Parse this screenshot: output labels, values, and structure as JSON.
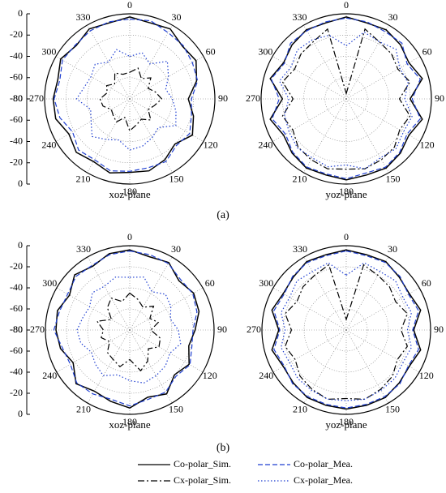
{
  "chart_data": [
    {
      "type": "polar",
      "title": "xoz-plane",
      "theta": [
        0,
        15,
        30,
        45,
        60,
        75,
        90,
        105,
        120,
        135,
        150,
        165,
        180,
        195,
        210,
        225,
        240,
        255,
        270,
        285,
        300,
        315,
        330,
        345
      ],
      "thetaticks": [
        0,
        30,
        60,
        90,
        120,
        150,
        180,
        210,
        240,
        270,
        300,
        330
      ],
      "rlim": [
        -80,
        0
      ],
      "rticks": [
        -80,
        -60,
        -40,
        -20,
        0
      ],
      "radial_axis": true,
      "grid": true,
      "series": [
        {
          "name": "Co-polar_Sim.",
          "color": "#000000",
          "dash": "solid",
          "values": [
            -3,
            -6,
            -4,
            -10,
            -8,
            -15,
            -25,
            -18,
            -12,
            -20,
            -14,
            -10,
            -11,
            -8,
            -12,
            -9,
            -14,
            -8,
            -8,
            -10,
            -5,
            -9,
            -4,
            -6
          ]
        },
        {
          "name": "Co-polar_Mea.",
          "color": "#1f3fd1",
          "dash": "dashed",
          "values": [
            -5,
            -4,
            -8,
            -9,
            -12,
            -14,
            -22,
            -20,
            -15,
            -18,
            -12,
            -13,
            -12,
            -10,
            -14,
            -12,
            -18,
            -12,
            -9,
            -12,
            -7,
            -8,
            -6,
            -5
          ]
        },
        {
          "name": "Cx-polar_Sim.",
          "color": "#000000",
          "dash": "dashdot",
          "values": [
            -55,
            -50,
            -58,
            -52,
            -60,
            -55,
            -50,
            -56,
            -60,
            -52,
            -58,
            -55,
            -50,
            -62,
            -55,
            -58,
            -60,
            -54,
            -52,
            -58,
            -55,
            -60,
            -52,
            -56
          ]
        },
        {
          "name": "Cx-polar_Mea.",
          "color": "#1f3fd1",
          "dash": "dotted",
          "values": [
            -40,
            -35,
            -42,
            -30,
            -38,
            -45,
            -40,
            -35,
            -30,
            -42,
            -38,
            -34,
            -32,
            -40,
            -36,
            -30,
            -38,
            -42,
            -30,
            -36,
            -38,
            -34,
            -40,
            -32
          ]
        }
      ]
    },
    {
      "type": "polar",
      "title": "yoz-plane",
      "theta": [
        0,
        15,
        30,
        45,
        60,
        75,
        90,
        105,
        120,
        135,
        150,
        165,
        180,
        195,
        210,
        225,
        240,
        255,
        270,
        285,
        300,
        315,
        330,
        345
      ],
      "thetaticks": [
        0,
        30,
        60,
        90,
        120,
        150,
        180,
        210,
        240,
        270,
        300,
        330
      ],
      "rlim": [
        -80,
        0
      ],
      "rticks": [
        -80,
        -60,
        -40,
        -20,
        0
      ],
      "radial_axis": false,
      "grid": true,
      "series": [
        {
          "name": "Co-polar_Sim.",
          "color": "#000000",
          "dash": "solid",
          "values": [
            -3,
            -6,
            -5,
            -8,
            -12,
            -6,
            -20,
            -6,
            -12,
            -8,
            -5,
            -6,
            -4,
            -6,
            -5,
            -8,
            -12,
            -6,
            -20,
            -6,
            -12,
            -8,
            -5,
            -6
          ]
        },
        {
          "name": "Co-polar_Mea.",
          "color": "#1f3fd1",
          "dash": "dashed",
          "values": [
            -4,
            -5,
            -7,
            -6,
            -14,
            -8,
            -18,
            -8,
            -14,
            -9,
            -6,
            -8,
            -5,
            -7,
            -6,
            -9,
            -14,
            -8,
            -17,
            -7,
            -13,
            -6,
            -6,
            -5
          ]
        },
        {
          "name": "Cx-polar_Sim.",
          "color": "#000000",
          "dash": "dashdot",
          "values": [
            -75,
            -12,
            -18,
            -20,
            -24,
            -18,
            -30,
            -18,
            -22,
            -16,
            -14,
            -12,
            -14,
            -12,
            -14,
            -16,
            -22,
            -18,
            -30,
            -18,
            -24,
            -20,
            -18,
            -12
          ]
        },
        {
          "name": "Cx-polar_Mea.",
          "color": "#1f3fd1",
          "dash": "dotted",
          "values": [
            -30,
            -15,
            -18,
            -14,
            -22,
            -20,
            -25,
            -16,
            -18,
            -14,
            -16,
            -12,
            -18,
            -14,
            -16,
            -15,
            -18,
            -20,
            -26,
            -15,
            -20,
            -15,
            -16,
            -18
          ]
        }
      ]
    },
    {
      "type": "polar",
      "title": "xoz-plane",
      "theta": [
        0,
        15,
        30,
        45,
        60,
        75,
        90,
        105,
        120,
        135,
        150,
        165,
        180,
        195,
        210,
        225,
        240,
        255,
        270,
        285,
        300,
        315,
        330,
        345
      ],
      "thetaticks": [
        0,
        30,
        60,
        90,
        120,
        150,
        180,
        210,
        240,
        270,
        300,
        330
      ],
      "rlim": [
        -80,
        0
      ],
      "rticks": [
        -80,
        -60,
        -40,
        -20,
        0
      ],
      "radial_axis": true,
      "grid": true,
      "series": [
        {
          "name": "Co-polar_Sim.",
          "color": "#000000",
          "dash": "solid",
          "values": [
            -4,
            -8,
            -6,
            -14,
            -10,
            -12,
            -18,
            -22,
            -15,
            -20,
            -10,
            -14,
            -6,
            -10,
            -13,
            -8,
            -18,
            -12,
            -10,
            -9,
            -14,
            -6,
            -10,
            -5
          ]
        },
        {
          "name": "Co-polar_Mea.",
          "color": "#1f3fd1",
          "dash": "dashed",
          "values": [
            -5,
            -6,
            -7,
            -12,
            -11,
            -14,
            -20,
            -19,
            -14,
            -18,
            -12,
            -12,
            -8,
            -12,
            -10,
            -9,
            -15,
            -14,
            -8,
            -11,
            -12,
            -8,
            -9,
            -6
          ]
        },
        {
          "name": "Cx-polar_Sim.",
          "color": "#000000",
          "dash": "dashdot",
          "values": [
            -45,
            -50,
            -55,
            -48,
            -58,
            -52,
            -60,
            -50,
            -48,
            -55,
            -46,
            -40,
            -52,
            -44,
            -48,
            -50,
            -58,
            -52,
            -55,
            -48,
            -60,
            -50,
            -45,
            -52
          ]
        },
        {
          "name": "Cx-polar_Mea.",
          "color": "#1f3fd1",
          "dash": "dotted",
          "values": [
            -30,
            -28,
            -38,
            -32,
            -35,
            -40,
            -34,
            -30,
            -36,
            -32,
            -30,
            -28,
            -32,
            -36,
            -30,
            -34,
            -38,
            -32,
            -30,
            -34,
            -36,
            -30,
            -32,
            -28
          ]
        }
      ]
    },
    {
      "type": "polar",
      "title": "yoz-plane",
      "theta": [
        0,
        15,
        30,
        45,
        60,
        75,
        90,
        105,
        120,
        135,
        150,
        165,
        180,
        195,
        210,
        225,
        240,
        255,
        270,
        285,
        300,
        315,
        330,
        345
      ],
      "thetaticks": [
        0,
        30,
        60,
        90,
        120,
        150,
        180,
        210,
        240,
        270,
        300,
        330
      ],
      "rlim": [
        -80,
        0
      ],
      "rticks": [
        -80,
        -60,
        -40,
        -20,
        0
      ],
      "radial_axis": false,
      "grid": true,
      "series": [
        {
          "name": "Co-polar_Sim.",
          "color": "#000000",
          "dash": "solid",
          "values": [
            -4,
            -6,
            -5,
            -9,
            -11,
            -7,
            -16,
            -7,
            -11,
            -9,
            -6,
            -6,
            -5,
            -6,
            -6,
            -9,
            -11,
            -7,
            -16,
            -7,
            -11,
            -9,
            -5,
            -6
          ]
        },
        {
          "name": "Co-polar_Mea.",
          "color": "#1f3fd1",
          "dash": "dashed",
          "values": [
            -5,
            -7,
            -6,
            -8,
            -12,
            -9,
            -17,
            -9,
            -12,
            -8,
            -7,
            -7,
            -6,
            -7,
            -7,
            -8,
            -12,
            -9,
            -17,
            -9,
            -12,
            -8,
            -6,
            -7
          ]
        },
        {
          "name": "Cx-polar_Sim.",
          "color": "#000000",
          "dash": "dashdot",
          "values": [
            -70,
            -16,
            -20,
            -22,
            -26,
            -20,
            -28,
            -20,
            -24,
            -18,
            -15,
            -12,
            -15,
            -12,
            -15,
            -18,
            -24,
            -20,
            -28,
            -20,
            -26,
            -22,
            -20,
            -16
          ]
        },
        {
          "name": "Cx-polar_Mea.",
          "color": "#1f3fd1",
          "dash": "dotted",
          "values": [
            -28,
            -14,
            -16,
            -14,
            -18,
            -16,
            -22,
            -16,
            -18,
            -15,
            -14,
            -12,
            -13,
            -12,
            -14,
            -15,
            -18,
            -16,
            -22,
            -16,
            -18,
            -14,
            -16,
            -14
          ]
        }
      ]
    }
  ],
  "panel_labels": [
    "(a)",
    "(b)"
  ]
}
